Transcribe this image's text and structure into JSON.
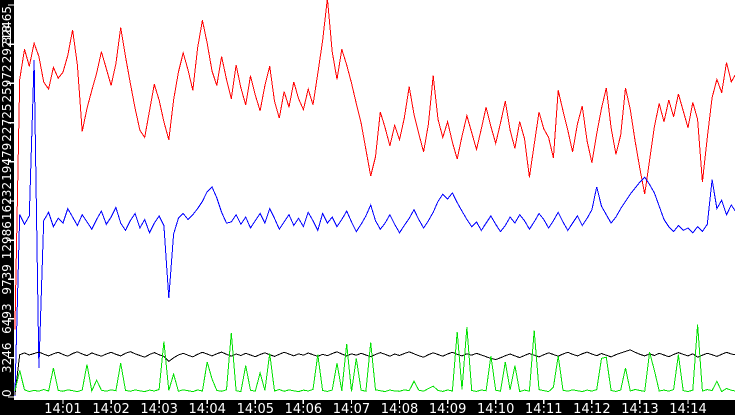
{
  "chart_data": {
    "type": "line",
    "title": "",
    "xlabel": "",
    "ylabel": "",
    "start_time": "14:00:00",
    "end_time": "14:15:00",
    "sample_interval_seconds": 6,
    "grid": false,
    "legend": "none",
    "colors": {
      "plot_background": "#ffffff",
      "axis_background": "#000000",
      "axis_text": "#ffffff",
      "tick": "#ffffff"
    },
    "y_axis": {
      "min": 0,
      "max": 32465,
      "tick_values": [
        0,
        3246,
        6493,
        9739,
        12986,
        16232,
        19479,
        22725,
        25972,
        29218,
        32465
      ],
      "tick_labels": [
        "0",
        "3246",
        "6493",
        "9739",
        "12986",
        "16232",
        "19479",
        "22725",
        "25972",
        "29218",
        "32465"
      ]
    },
    "x_axis": {
      "tick_labels": [
        "14:01",
        "14:02",
        "14:03",
        "14:04",
        "14:05",
        "14:06",
        "14:07",
        "14:08",
        "14:09",
        "14:10",
        "14:11",
        "14:12",
        "14:13",
        "14:14"
      ],
      "tick_minute_offsets": [
        1,
        2,
        3,
        4,
        5,
        6,
        7,
        8,
        9,
        10,
        11,
        12,
        13,
        14
      ]
    },
    "series": [
      {
        "name": "red",
        "color": "#ff0000",
        "values": [
          5600,
          26300,
          28800,
          27400,
          29300,
          28200,
          26100,
          25500,
          27300,
          26400,
          26900,
          28300,
          30400,
          27500,
          22000,
          23900,
          25400,
          26800,
          28600,
          27200,
          25800,
          27600,
          30600,
          28200,
          26000,
          23900,
          22100,
          21500,
          23700,
          25900,
          24600,
          22800,
          21300,
          24600,
          26900,
          28500,
          27100,
          25400,
          28900,
          31200,
          29300,
          27000,
          25800,
          28200,
          26300,
          24700,
          27500,
          25600,
          24200,
          26600,
          25000,
          23700,
          25800,
          27400,
          24500,
          23100,
          25300,
          24000,
          26100,
          24700,
          23800,
          25500,
          24200,
          26800,
          29500,
          33000,
          28600,
          26300,
          28800,
          27500,
          26000,
          24300,
          22700,
          20500,
          18300,
          19900,
          23600,
          22300,
          20800,
          22500,
          21300,
          23100,
          25700,
          23400,
          21800,
          20300,
          22600,
          26600,
          23000,
          21500,
          22800,
          21100,
          19700,
          21600,
          23300,
          21900,
          20500,
          22200,
          24000,
          22400,
          21000,
          22700,
          24500,
          22100,
          20600,
          22800,
          21400,
          18200,
          20900,
          23600,
          22200,
          21500,
          19800,
          25400,
          23700,
          22100,
          20300,
          22600,
          24100,
          21200,
          19400,
          21800,
          23900,
          25600,
          22300,
          20100,
          21700,
          25600,
          23800,
          21200,
          18900,
          16800,
          19600,
          22400,
          24300,
          22800,
          24600,
          23200,
          25100,
          23700,
          22300,
          24400,
          23000,
          17800,
          21500,
          24800,
          26300,
          25200,
          27700,
          26100,
          26800
        ]
      },
      {
        "name": "blue",
        "color": "#0000ff",
        "values": [
          100,
          15100,
          14300,
          15000,
          27900,
          2400,
          14600,
          15300,
          14100,
          14800,
          14400,
          15600,
          14900,
          14200,
          15100,
          14500,
          13900,
          14700,
          15400,
          14300,
          14900,
          15700,
          14400,
          13800,
          14600,
          15200,
          14000,
          14700,
          13600,
          14400,
          15000,
          14200,
          8200,
          13500,
          14800,
          15200,
          14700,
          15100,
          15600,
          16200,
          17000,
          17400,
          16500,
          15300,
          14400,
          14500,
          15100,
          14300,
          14900,
          14000,
          14600,
          15200,
          14400,
          15600,
          14800,
          13900,
          14500,
          15100,
          14200,
          14800,
          14100,
          15300,
          14600,
          13800,
          15200,
          14400,
          14900,
          14100,
          14700,
          15400,
          14500,
          13700,
          14300,
          15000,
          15900,
          14600,
          13900,
          14400,
          15100,
          14300,
          13600,
          14200,
          14800,
          15500,
          14700,
          14000,
          14600,
          15300,
          16200,
          16800,
          16400,
          16900,
          16100,
          15400,
          14700,
          14100,
          14500,
          13800,
          14400,
          15000,
          14300,
          13700,
          14200,
          14900,
          14400,
          15100,
          14600,
          13900,
          14500,
          15200,
          14700,
          14000,
          14600,
          15300,
          14500,
          13800,
          14400,
          15000,
          14200,
          14800,
          15500,
          17400,
          15800,
          15100,
          14400,
          14900,
          15600,
          16200,
          16800,
          17300,
          17800,
          18200,
          17600,
          16900,
          15800,
          14700,
          14100,
          13700,
          14200,
          13800,
          14000,
          13600,
          14100,
          13700,
          14300,
          18000,
          15600,
          16300,
          15100,
          15900,
          15300
        ]
      },
      {
        "name": "black",
        "color": "#000000",
        "values": [
          150,
          3500,
          3650,
          3480,
          3600,
          3720,
          3550,
          3400,
          3580,
          3700,
          3520,
          3380,
          3600,
          3740,
          3560,
          3420,
          3650,
          3500,
          3380,
          3560,
          3700,
          3540,
          3400,
          3620,
          3760,
          3580,
          3440,
          3300,
          3520,
          3680,
          3500,
          3360,
          2950,
          3250,
          3480,
          3620,
          3460,
          3320,
          3540,
          3700,
          3560,
          3400,
          3580,
          3720,
          3540,
          3380,
          3560,
          3440,
          3620,
          3480,
          3340,
          3520,
          3660,
          3500,
          3360,
          3540,
          3700,
          3560,
          3400,
          3580,
          3460,
          3640,
          3500,
          3360,
          3540,
          3420,
          3600,
          3740,
          3560,
          3400,
          3580,
          3460,
          3620,
          3480,
          3340,
          3520,
          3680,
          3540,
          3380,
          3560,
          3440,
          3600,
          3740,
          3580,
          3420,
          3300,
          3500,
          3660,
          3520,
          3380,
          3560,
          3700,
          3540,
          3400,
          3580,
          3460,
          3620,
          3480,
          3340,
          3200,
          3100,
          3250,
          3420,
          3560,
          3400,
          3260,
          3440,
          3600,
          3460,
          3320,
          3500,
          3660,
          3520,
          3380,
          3560,
          3700,
          3540,
          3400,
          3580,
          3720,
          3560,
          3420,
          3600,
          3460,
          3320,
          3500,
          3640,
          3780,
          3900,
          3700,
          3540,
          3400,
          3580,
          3440,
          3620,
          3480,
          3340,
          3520,
          3680,
          3540,
          3400,
          3580,
          3300,
          3460,
          3620,
          3500,
          3360,
          3540,
          3700,
          3560,
          3480
        ]
      },
      {
        "name": "green",
        "color": "#00e000",
        "values": [
          500,
          2200,
          600,
          450,
          550,
          480,
          620,
          500,
          2400,
          550,
          470,
          600,
          520,
          450,
          580,
          2700,
          500,
          1400,
          560,
          480,
          600,
          520,
          2800,
          550,
          470,
          590,
          510,
          450,
          570,
          500,
          620,
          4600,
          540,
          1900,
          480,
          600,
          520,
          450,
          580,
          500,
          2900,
          1500,
          550,
          470,
          600,
          5300,
          520,
          450,
          2600,
          560,
          480,
          2000,
          540,
          3600,
          500,
          620,
          470,
          590,
          510,
          450,
          570,
          500,
          620,
          3500,
          540,
          460,
          580,
          2800,
          520,
          4400,
          450,
          3200,
          560,
          480,
          4500,
          600,
          520,
          450,
          580,
          500,
          470,
          600,
          520,
          1300,
          560,
          480,
          700,
          900,
          540,
          460,
          580,
          500,
          5400,
          620,
          5800,
          540,
          460,
          580,
          510,
          3400,
          560,
          480,
          2900,
          600,
          2600,
          450,
          570,
          490,
          5500,
          610,
          530,
          450,
          800,
          3400,
          560,
          480,
          600,
          520,
          450,
          570,
          490,
          610,
          3200,
          3300,
          540,
          460,
          580,
          2400,
          500,
          620,
          540,
          460,
          3700,
          2200,
          500,
          570,
          490,
          610,
          3500,
          530,
          450,
          570,
          6000,
          490,
          610,
          530,
          1300,
          450,
          700,
          560,
          480
        ]
      }
    ]
  }
}
